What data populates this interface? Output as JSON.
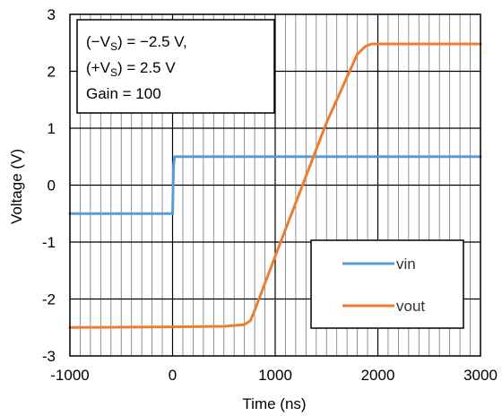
{
  "chart_data": {
    "type": "line",
    "xlabel": "Time (ns)",
    "ylabel": "Voltage (V)",
    "xlim": [
      -1000,
      3000
    ],
    "ylim": [
      -3,
      3
    ],
    "x_ticks": [
      "-1000",
      "0",
      "1000",
      "2000",
      "3000"
    ],
    "y_ticks": [
      "3",
      "2",
      "1",
      "0",
      "-1",
      "-2",
      "-3"
    ],
    "grid": true,
    "legend": {
      "position": "bottom-right"
    },
    "annotation": [
      "(−V",
      "S",
      ") = −2.5 V,",
      "(+V",
      "S",
      ") = 2.5 V",
      "Gain = 100"
    ],
    "series": [
      {
        "name": "vin",
        "color": "#5B9BD5",
        "x": [
          -1000,
          -200,
          0,
          10,
          20,
          1000,
          2000,
          3000
        ],
        "y": [
          -0.5,
          -0.5,
          -0.5,
          0.35,
          0.5,
          0.5,
          0.5,
          0.5
        ]
      },
      {
        "name": "vout",
        "color": "#ED7D31",
        "x": [
          -1000,
          0,
          500,
          700,
          760,
          800,
          1000,
          1500,
          1800,
          1880,
          1940,
          2000,
          2500,
          3000
        ],
        "y": [
          -2.5,
          -2.49,
          -2.48,
          -2.45,
          -2.38,
          -2.2,
          -1.25,
          1.1,
          2.3,
          2.44,
          2.48,
          2.48,
          2.48,
          2.48
        ]
      }
    ]
  }
}
